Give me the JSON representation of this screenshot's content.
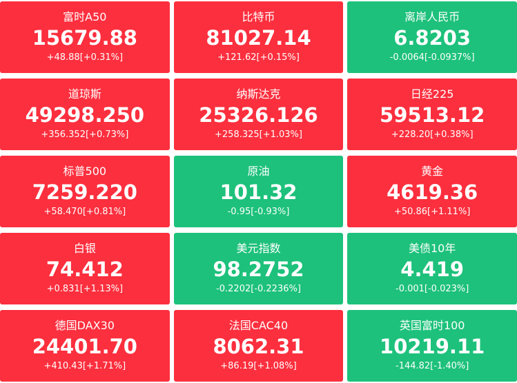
{
  "tiles": [
    {
      "name": "富时A50",
      "price": "15679.88",
      "change": "+48.88[+0.31%]",
      "color": "#fc2f3e"
    },
    {
      "name": "比特币",
      "price": "81027.14",
      "change": "+121.62[+0.15%]",
      "color": "#fc2f3e"
    },
    {
      "name": "离岸人民币",
      "price": "6.8203",
      "change": "-0.0064[-0.0937%]",
      "color": "#1dc17b"
    },
    {
      "name": "道琼斯",
      "price": "49298.250",
      "change": "+356.352[+0.73%]",
      "color": "#fc2f3e"
    },
    {
      "name": "纳斯达克",
      "price": "25326.126",
      "change": "+258.325[+1.03%]",
      "color": "#fc2f3e"
    },
    {
      "name": "日经225",
      "price": "59513.12",
      "change": "+228.20[+0.38%]",
      "color": "#fc2f3e"
    },
    {
      "name": "标普500",
      "price": "7259.220",
      "change": "+58.470[+0.81%]",
      "color": "#fc2f3e"
    },
    {
      "name": "原油",
      "price": "101.32",
      "change": "-0.95[-0.93%]",
      "color": "#1dc17b"
    },
    {
      "name": "黄金",
      "price": "4619.36",
      "change": "+50.86[+1.11%]",
      "color": "#fc2f3e"
    },
    {
      "name": "白银",
      "price": "74.412",
      "change": "+0.831[+1.13%]",
      "color": "#fc2f3e"
    },
    {
      "name": "美元指数",
      "price": "98.2752",
      "change": "-0.2202[-0.2236%]",
      "color": "#1dc17b"
    },
    {
      "name": "美债10年",
      "price": "4.419",
      "change": "-0.001[-0.023%]",
      "color": "#1dc17b"
    },
    {
      "name": "德国DAX30",
      "price": "24401.70",
      "change": "+410.43[+1.71%]",
      "color": "#fc2f3e"
    },
    {
      "name": "法国CAC40",
      "price": "8062.31",
      "change": "+86.19[+1.08%]",
      "color": "#fc2f3e"
    },
    {
      "name": "英国富时100",
      "price": "10219.11",
      "change": "-144.82[-1.40%]",
      "color": "#1dc17b"
    }
  ]
}
